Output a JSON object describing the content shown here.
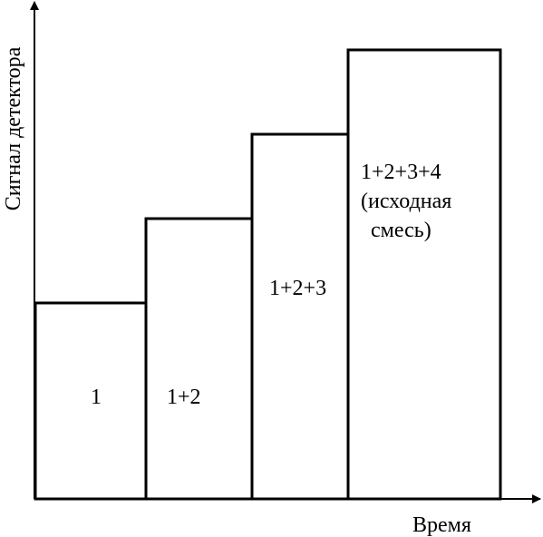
{
  "axes": {
    "y_label": "Сигнал детектора",
    "x_label": "Время"
  },
  "steps": [
    {
      "label_lines": [
        "1"
      ]
    },
    {
      "label_lines": [
        "1+2"
      ]
    },
    {
      "label_lines": [
        "1+2+3"
      ]
    },
    {
      "label_lines": [
        "1+2+3+4",
        "(исходная",
        "смесь)"
      ]
    }
  ],
  "colors": {
    "line": "#000000",
    "background": "#ffffff"
  }
}
